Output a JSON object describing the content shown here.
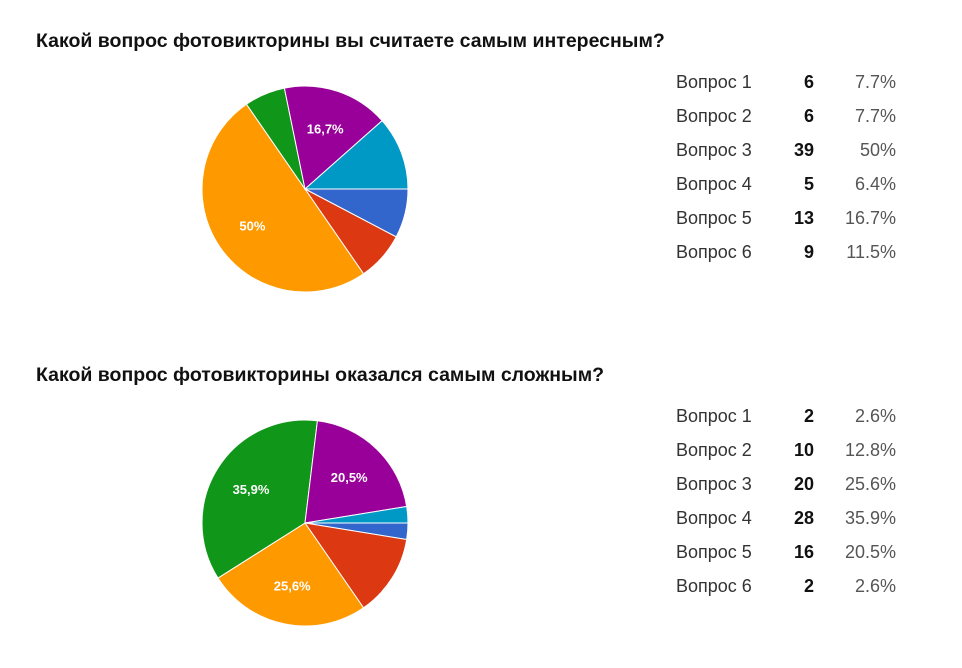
{
  "chart_data": [
    {
      "type": "pie",
      "title": "Какой вопрос фотовикторины вы считаете самым интересным?",
      "categories": [
        "Вопрос 1",
        "Вопрос 2",
        "Вопрос 3",
        "Вопрос 4",
        "Вопрос 5",
        "Вопрос 6"
      ],
      "values": [
        6,
        6,
        39,
        5,
        13,
        9
      ],
      "percents": [
        "7.7%",
        "7.7%",
        "50%",
        "6.4%",
        "16.7%",
        "11.5%"
      ],
      "slice_labels": [
        "",
        "",
        "50%",
        "",
        "16,7%",
        ""
      ],
      "colors": [
        "#3366cc",
        "#dc3912",
        "#ff9900",
        "#109618",
        "#990099",
        "#0099c6"
      ],
      "legend": "right"
    },
    {
      "type": "pie",
      "title": "Какой вопрос фотовикторины оказался самым сложным?",
      "categories": [
        "Вопрос 1",
        "Вопрос 2",
        "Вопрос 3",
        "Вопрос 4",
        "Вопрос 5",
        "Вопрос 6"
      ],
      "values": [
        2,
        10,
        20,
        28,
        16,
        2
      ],
      "percents": [
        "2.6%",
        "12.8%",
        "25.6%",
        "35.9%",
        "20.5%",
        "2.6%"
      ],
      "slice_labels": [
        "",
        "",
        "25,6%",
        "35,9%",
        "20,5%",
        ""
      ],
      "colors": [
        "#3366cc",
        "#dc3912",
        "#ff9900",
        "#109618",
        "#990099",
        "#0099c6"
      ],
      "legend": "right"
    }
  ]
}
